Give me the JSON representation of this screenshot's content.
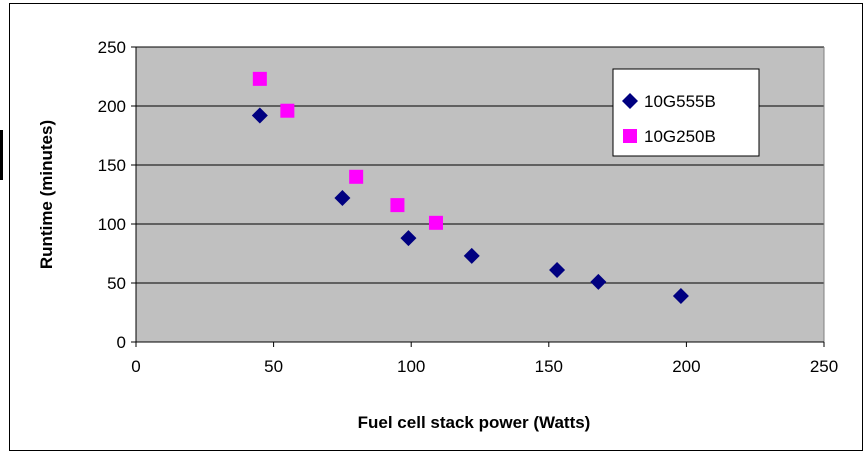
{
  "chart_data": {
    "type": "scatter",
    "xlabel": "Fuel cell stack power (Watts)",
    "ylabel": "Runtime (minutes)",
    "xlim": [
      0,
      250
    ],
    "ylim": [
      0,
      250
    ],
    "xticks": [
      0,
      50,
      100,
      150,
      200,
      250
    ],
    "yticks": [
      0,
      50,
      100,
      150,
      200,
      250
    ],
    "x_tick_labels": [
      "0",
      "50",
      "100",
      "150",
      "200",
      "250"
    ],
    "y_tick_labels": [
      "0",
      "50",
      "100",
      "150",
      "200",
      "250"
    ],
    "grid": "horizontal",
    "legend_position": "top-right",
    "plot_background": "#c0c0c0",
    "series": [
      {
        "name": "10G555B",
        "marker": "diamond",
        "color": "#000080",
        "points": [
          [
            45,
            192
          ],
          [
            75,
            122
          ],
          [
            99,
            88
          ],
          [
            122,
            73
          ],
          [
            153,
            61
          ],
          [
            168,
            51
          ],
          [
            198,
            39
          ]
        ]
      },
      {
        "name": "10G250B",
        "marker": "square",
        "color": "#ff00ff",
        "points": [
          [
            45,
            223
          ],
          [
            55,
            196
          ],
          [
            80,
            140
          ],
          [
            95,
            116
          ],
          [
            109,
            101
          ]
        ]
      }
    ]
  }
}
